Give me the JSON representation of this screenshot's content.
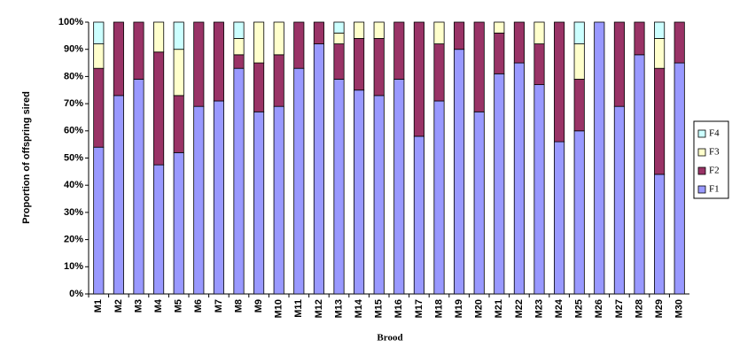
{
  "chart_data": {
    "type": "stacked_bar",
    "x_label": "Brood",
    "y_label": "Proportion of offspring sired",
    "categories": [
      "M1",
      "M2",
      "M3",
      "M4",
      "M5",
      "M6",
      "M7",
      "M8",
      "M9",
      "M10",
      "M11",
      "M12",
      "M13",
      "M14",
      "M15",
      "M16",
      "M17",
      "M18",
      "M19",
      "M20",
      "M21",
      "M22",
      "M23",
      "M24",
      "M25",
      "M26",
      "M27",
      "M28",
      "M29",
      "M30"
    ],
    "series": [
      {
        "name": "F1",
        "color": "#9999ff",
        "values": [
          54,
          73,
          79,
          47.5,
          52,
          69,
          71,
          83,
          67,
          69,
          83,
          92,
          79,
          75,
          73,
          79,
          58,
          71,
          90,
          67,
          81,
          85,
          77,
          56,
          60,
          100,
          69,
          88,
          44,
          85
        ]
      },
      {
        "name": "F2",
        "color": "#993366",
        "values": [
          29,
          27,
          21,
          41.5,
          21,
          31,
          29,
          5,
          18,
          19,
          17,
          8,
          13,
          19,
          21,
          21,
          42,
          21,
          10,
          33,
          15,
          15,
          15,
          44,
          19,
          0,
          31,
          12,
          39,
          15
        ]
      },
      {
        "name": "F3",
        "color": "#ffffcc",
        "values": [
          9,
          0,
          0,
          11,
          17,
          0,
          0,
          6,
          15,
          12,
          0,
          0,
          4,
          6,
          6,
          0,
          0,
          8,
          0,
          0,
          4,
          0,
          8,
          0,
          13,
          0,
          0,
          0,
          11,
          0
        ]
      },
      {
        "name": "F4",
        "color": "#ccffff",
        "values": [
          8,
          0,
          0,
          0,
          10,
          0,
          0,
          6,
          0,
          0,
          0,
          0,
          4,
          0,
          0,
          0,
          0,
          0,
          0,
          0,
          0,
          0,
          0,
          0,
          8,
          0,
          0,
          0,
          6,
          0
        ]
      }
    ],
    "ylim": [
      0,
      100
    ],
    "yticks": [
      {
        "value": 0,
        "label": "0%"
      },
      {
        "value": 10,
        "label": "10%"
      },
      {
        "value": 20,
        "label": "20%"
      },
      {
        "value": 30,
        "label": "30%"
      },
      {
        "value": 40,
        "label": "40%"
      },
      {
        "value": 50,
        "label": "50%"
      },
      {
        "value": 60,
        "label": "60%"
      },
      {
        "value": 70,
        "label": "70%"
      },
      {
        "value": 80,
        "label": "80%"
      },
      {
        "value": 90,
        "label": "90%"
      },
      {
        "value": 100,
        "label": "100%"
      }
    ],
    "legend": "right"
  }
}
